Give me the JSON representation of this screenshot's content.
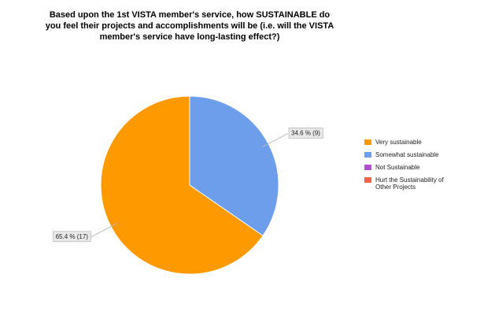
{
  "chart_data": {
    "type": "pie",
    "title": "Based upon the 1st VISTA member's service, how SUSTAINABLE do you feel their projects and accomplishments will be (i.e. will the VISTA member's service have long-lasting effect?)",
    "categories": [
      "Very sustainable",
      "Somewhat sustainable",
      "Not Sustainable",
      "Hurt the Sustainability of Other Projects"
    ],
    "values": [
      65.4,
      34.6,
      0,
      0
    ],
    "value_labels": [
      "65.4 % (17)",
      "34.6 % (9)",
      null,
      null
    ],
    "colors": [
      "#ff9900",
      "#6d9eeb",
      "#b04fce",
      "#ef6249"
    ],
    "legend": "right"
  }
}
